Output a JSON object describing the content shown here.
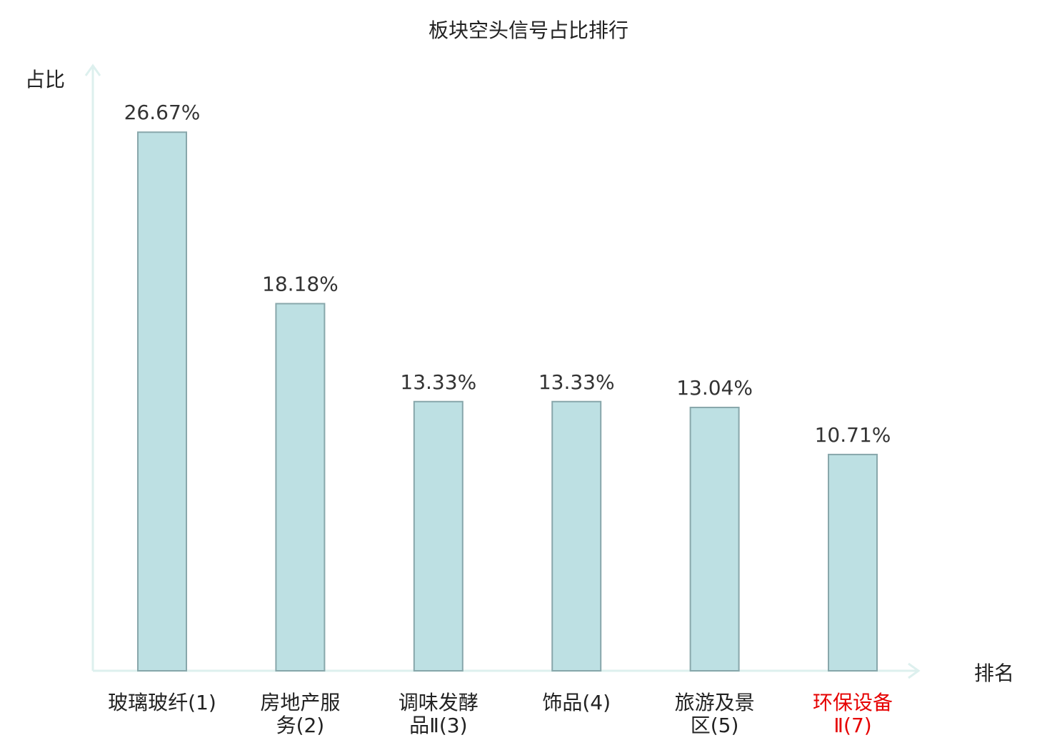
{
  "chart_data": {
    "type": "bar",
    "title": "板块空头信号占比排行",
    "ylabel": "占比",
    "xlabel": "排名",
    "ylim": [
      0,
      28
    ],
    "grid": false,
    "categories": [
      [
        "玻璃玻纤(1)"
      ],
      [
        "房地产服",
        "务(2)"
      ],
      [
        "调味发酵",
        "品Ⅱ(3)"
      ],
      [
        "饰品(4)"
      ],
      [
        "旅游及景",
        "区(5)"
      ],
      [
        "环保设备",
        "Ⅱ(7)"
      ]
    ],
    "values": [
      26.67,
      18.18,
      13.33,
      13.33,
      13.04,
      10.71
    ],
    "value_labels": [
      "26.67%",
      "18.18%",
      "13.33%",
      "13.33%",
      "13.04%",
      "10.71%"
    ],
    "highlight_index": 5,
    "colors": {
      "bar_fill": "#bde0e3",
      "bar_stroke": "#88a7ab",
      "axis": "#ddf0ee",
      "text": "#333333",
      "highlight_text": "#e60000"
    }
  }
}
